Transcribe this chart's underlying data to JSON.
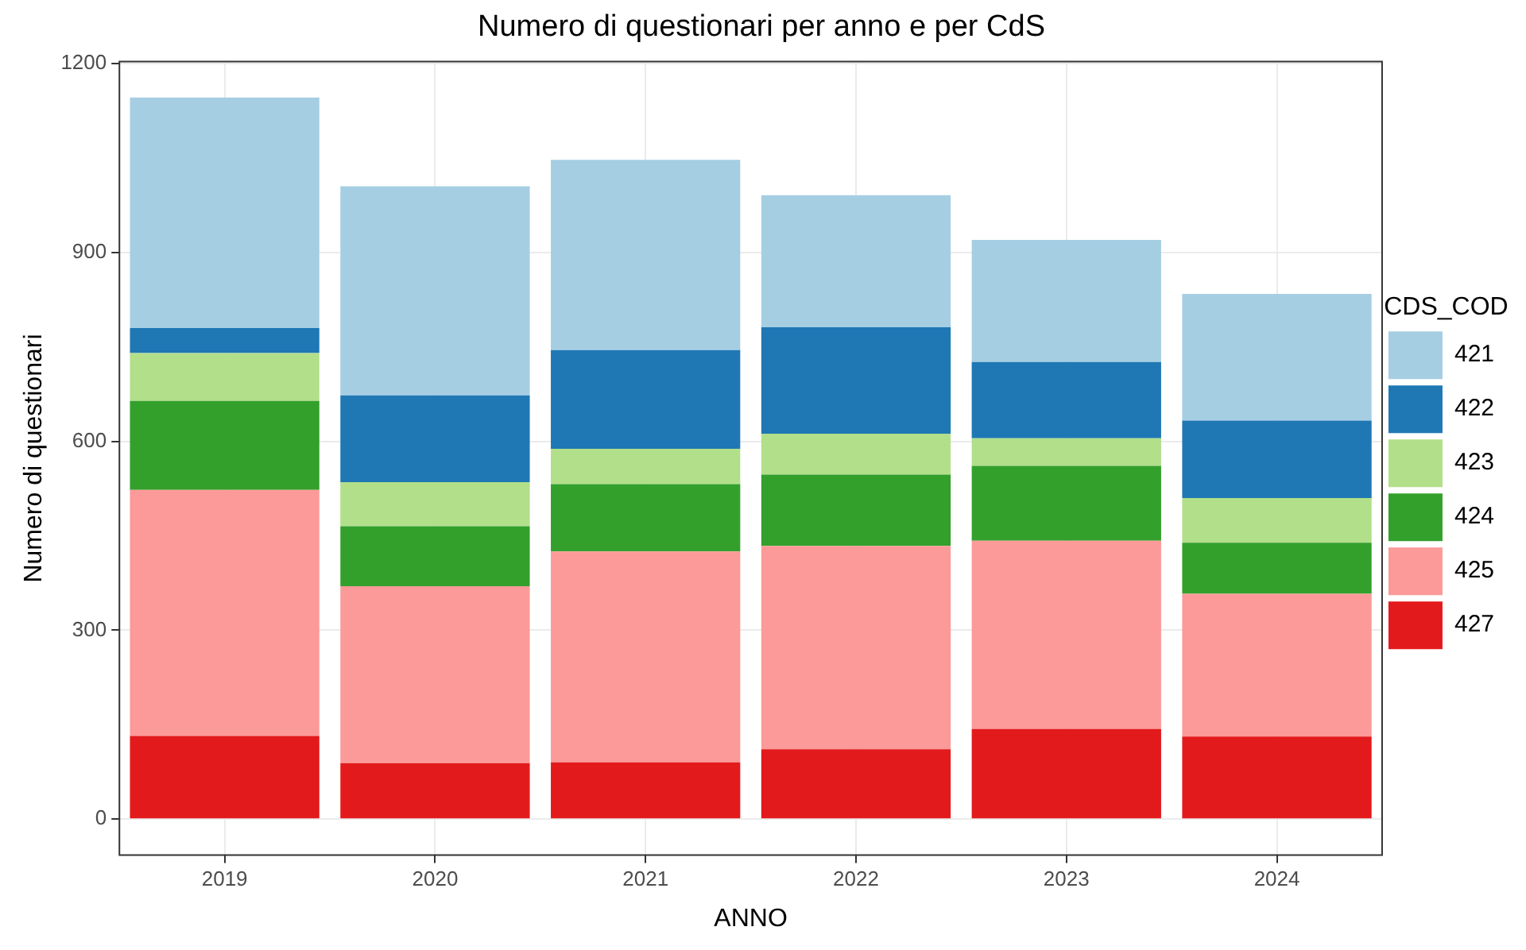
{
  "chart_data": {
    "type": "bar",
    "title": "Numero di questionari per anno e per CdS",
    "xlabel": "ANNO",
    "ylabel": "Numero di questionari",
    "legend_title": "CDS_COD",
    "categories": [
      "2019",
      "2020",
      "2021",
      "2022",
      "2023",
      "2024"
    ],
    "stacked": true,
    "series": [
      {
        "name": "427",
        "color": "#e31a1c",
        "values": [
          132,
          89,
          90,
          111,
          143,
          131
        ]
      },
      {
        "name": "425",
        "color": "#fb9a99",
        "values": [
          391,
          281,
          335,
          323,
          299,
          227
        ]
      },
      {
        "name": "424",
        "color": "#33a02c",
        "values": [
          141,
          95,
          107,
          113,
          119,
          81
        ]
      },
      {
        "name": "423",
        "color": "#b2df8a",
        "values": [
          76,
          70,
          56,
          65,
          44,
          71
        ]
      },
      {
        "name": "422",
        "color": "#1f78b4",
        "values": [
          40,
          138,
          157,
          169,
          121,
          123
        ]
      },
      {
        "name": "421",
        "color": "#a6cee3",
        "values": [
          366,
          332,
          302,
          210,
          194,
          201
        ]
      }
    ],
    "ylim": [
      -57,
      1203
    ],
    "yticks": [
      0,
      300,
      600,
      900,
      1200
    ],
    "grid": true,
    "legend": "right"
  }
}
